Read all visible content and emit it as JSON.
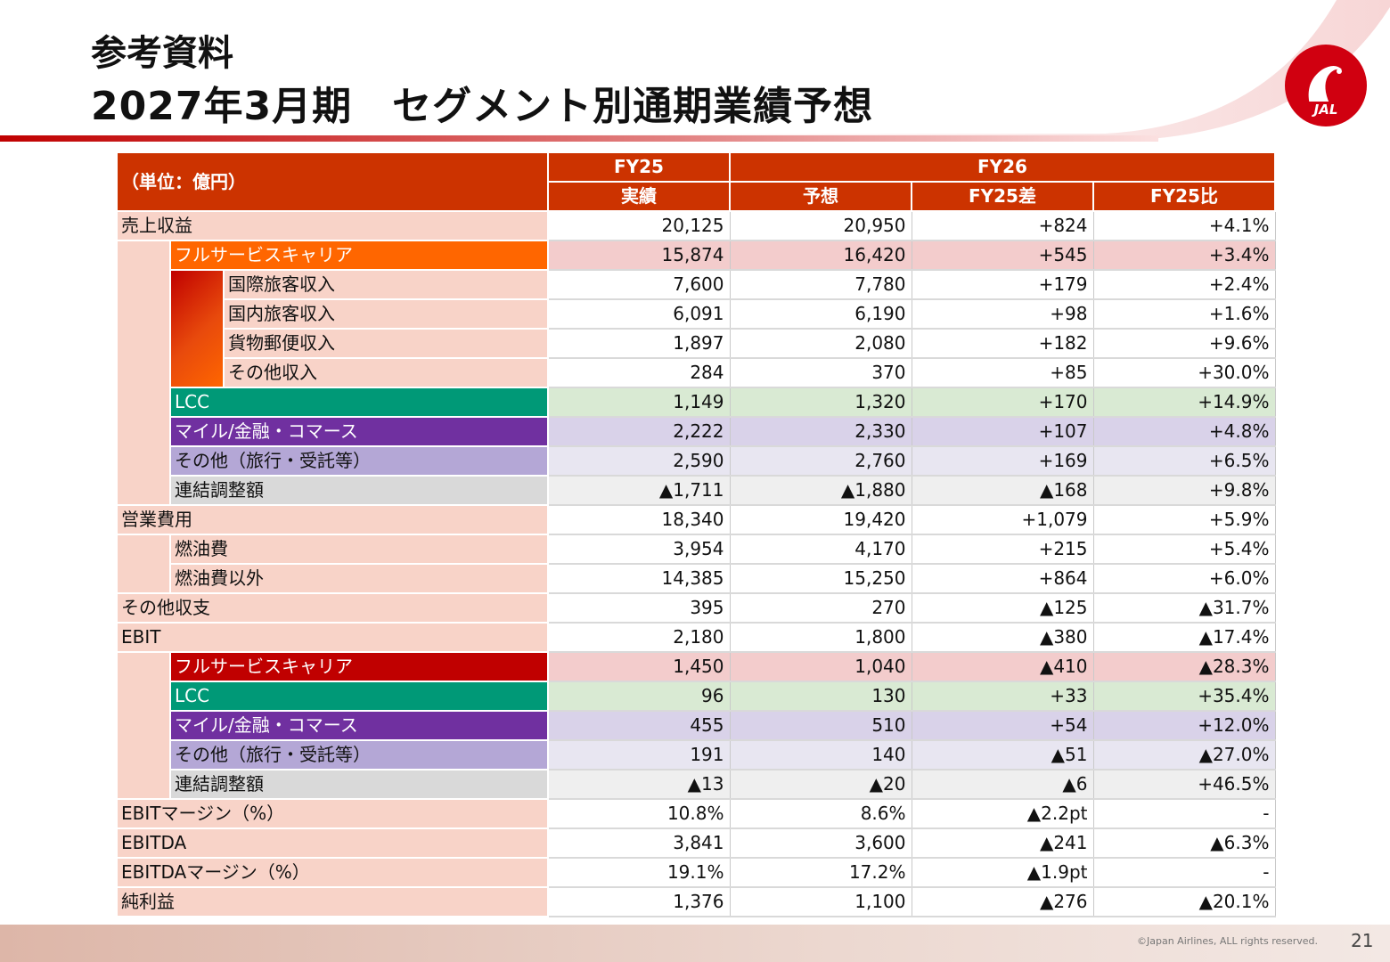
{
  "title": {
    "line1": "参考資料",
    "line2": "2027年3月期　セグメント別通期業績予想"
  },
  "logo": {
    "text": "JAL"
  },
  "colors": {
    "header": "#cc3300",
    "full_service_carrier": "#ff6600",
    "full_service_carrier_ebit": "#c00000",
    "lcc": "#009977",
    "mile_finance_commerce": "#7030a0",
    "other_segment": "#b4a7d6",
    "consolidation": "#d9d9d9",
    "label_bg": "#f8d3c8"
  },
  "table": {
    "unit": "（単位：億円）",
    "fy25": "FY25",
    "fy26": "FY26",
    "col_actual": "実績",
    "col_forecast": "予想",
    "col_diff": "FY25差",
    "col_ratio": "FY25比",
    "rows": [
      {
        "label": "売上収益",
        "values": [
          "20,125",
          "20,950",
          "+824",
          "+4.1%"
        ]
      },
      {
        "label": "フルサービスキャリア",
        "values": [
          "15,874",
          "16,420",
          "+545",
          "+3.4%"
        ]
      },
      {
        "label": "国際旅客収入",
        "values": [
          "7,600",
          "7,780",
          "+179",
          "+2.4%"
        ]
      },
      {
        "label": "国内旅客収入",
        "values": [
          "6,091",
          "6,190",
          "+98",
          "+1.6%"
        ]
      },
      {
        "label": "貨物郵便収入",
        "values": [
          "1,897",
          "2,080",
          "+182",
          "+9.6%"
        ]
      },
      {
        "label": "その他収入",
        "values": [
          "284",
          "370",
          "+85",
          "+30.0%"
        ]
      },
      {
        "label": "LCC",
        "values": [
          "1,149",
          "1,320",
          "+170",
          "+14.9%"
        ]
      },
      {
        "label": "マイル/金融・コマース",
        "values": [
          "2,222",
          "2,330",
          "+107",
          "+4.8%"
        ]
      },
      {
        "label": "その他（旅行・受託等）",
        "values": [
          "2,590",
          "2,760",
          "+169",
          "+6.5%"
        ]
      },
      {
        "label": "連結調整額",
        "values": [
          "▲1,711",
          "▲1,880",
          "▲168",
          "+9.8%"
        ]
      },
      {
        "label": "営業費用",
        "values": [
          "18,340",
          "19,420",
          "+1,079",
          "+5.9%"
        ]
      },
      {
        "label": "燃油費",
        "values": [
          "3,954",
          "4,170",
          "+215",
          "+5.4%"
        ]
      },
      {
        "label": "燃油費以外",
        "values": [
          "14,385",
          "15,250",
          "+864",
          "+6.0%"
        ]
      },
      {
        "label": "その他収支",
        "values": [
          "395",
          "270",
          "▲125",
          "▲31.7%"
        ]
      },
      {
        "label": "EBIT",
        "values": [
          "2,180",
          "1,800",
          "▲380",
          "▲17.4%"
        ]
      },
      {
        "label": "フルサービスキャリア",
        "values": [
          "1,450",
          "1,040",
          "▲410",
          "▲28.3%"
        ]
      },
      {
        "label": "LCC",
        "values": [
          "96",
          "130",
          "+33",
          "+35.4%"
        ]
      },
      {
        "label": "マイル/金融・コマース",
        "values": [
          "455",
          "510",
          "+54",
          "+12.0%"
        ]
      },
      {
        "label": "その他（旅行・受託等）",
        "values": [
          "191",
          "140",
          "▲51",
          "▲27.0%"
        ]
      },
      {
        "label": "連結調整額",
        "values": [
          "▲13",
          "▲20",
          "▲6",
          "+46.5%"
        ]
      },
      {
        "label": "EBITマージン（%）",
        "values": [
          "10.8%",
          "8.6%",
          "▲2.2pt",
          "-"
        ]
      },
      {
        "label": "EBITDA",
        "values": [
          "3,841",
          "3,600",
          "▲241",
          "▲6.3%"
        ]
      },
      {
        "label": "EBITDAマージン（%）",
        "values": [
          "19.1%",
          "17.2%",
          "▲1.9pt",
          "-"
        ]
      },
      {
        "label": "純利益",
        "values": [
          "1,376",
          "1,100",
          "▲276",
          "▲20.1%"
        ]
      }
    ]
  },
  "footer": {
    "copyright": "©Japan Airlines, ALL rights reserved.",
    "page": "21"
  }
}
